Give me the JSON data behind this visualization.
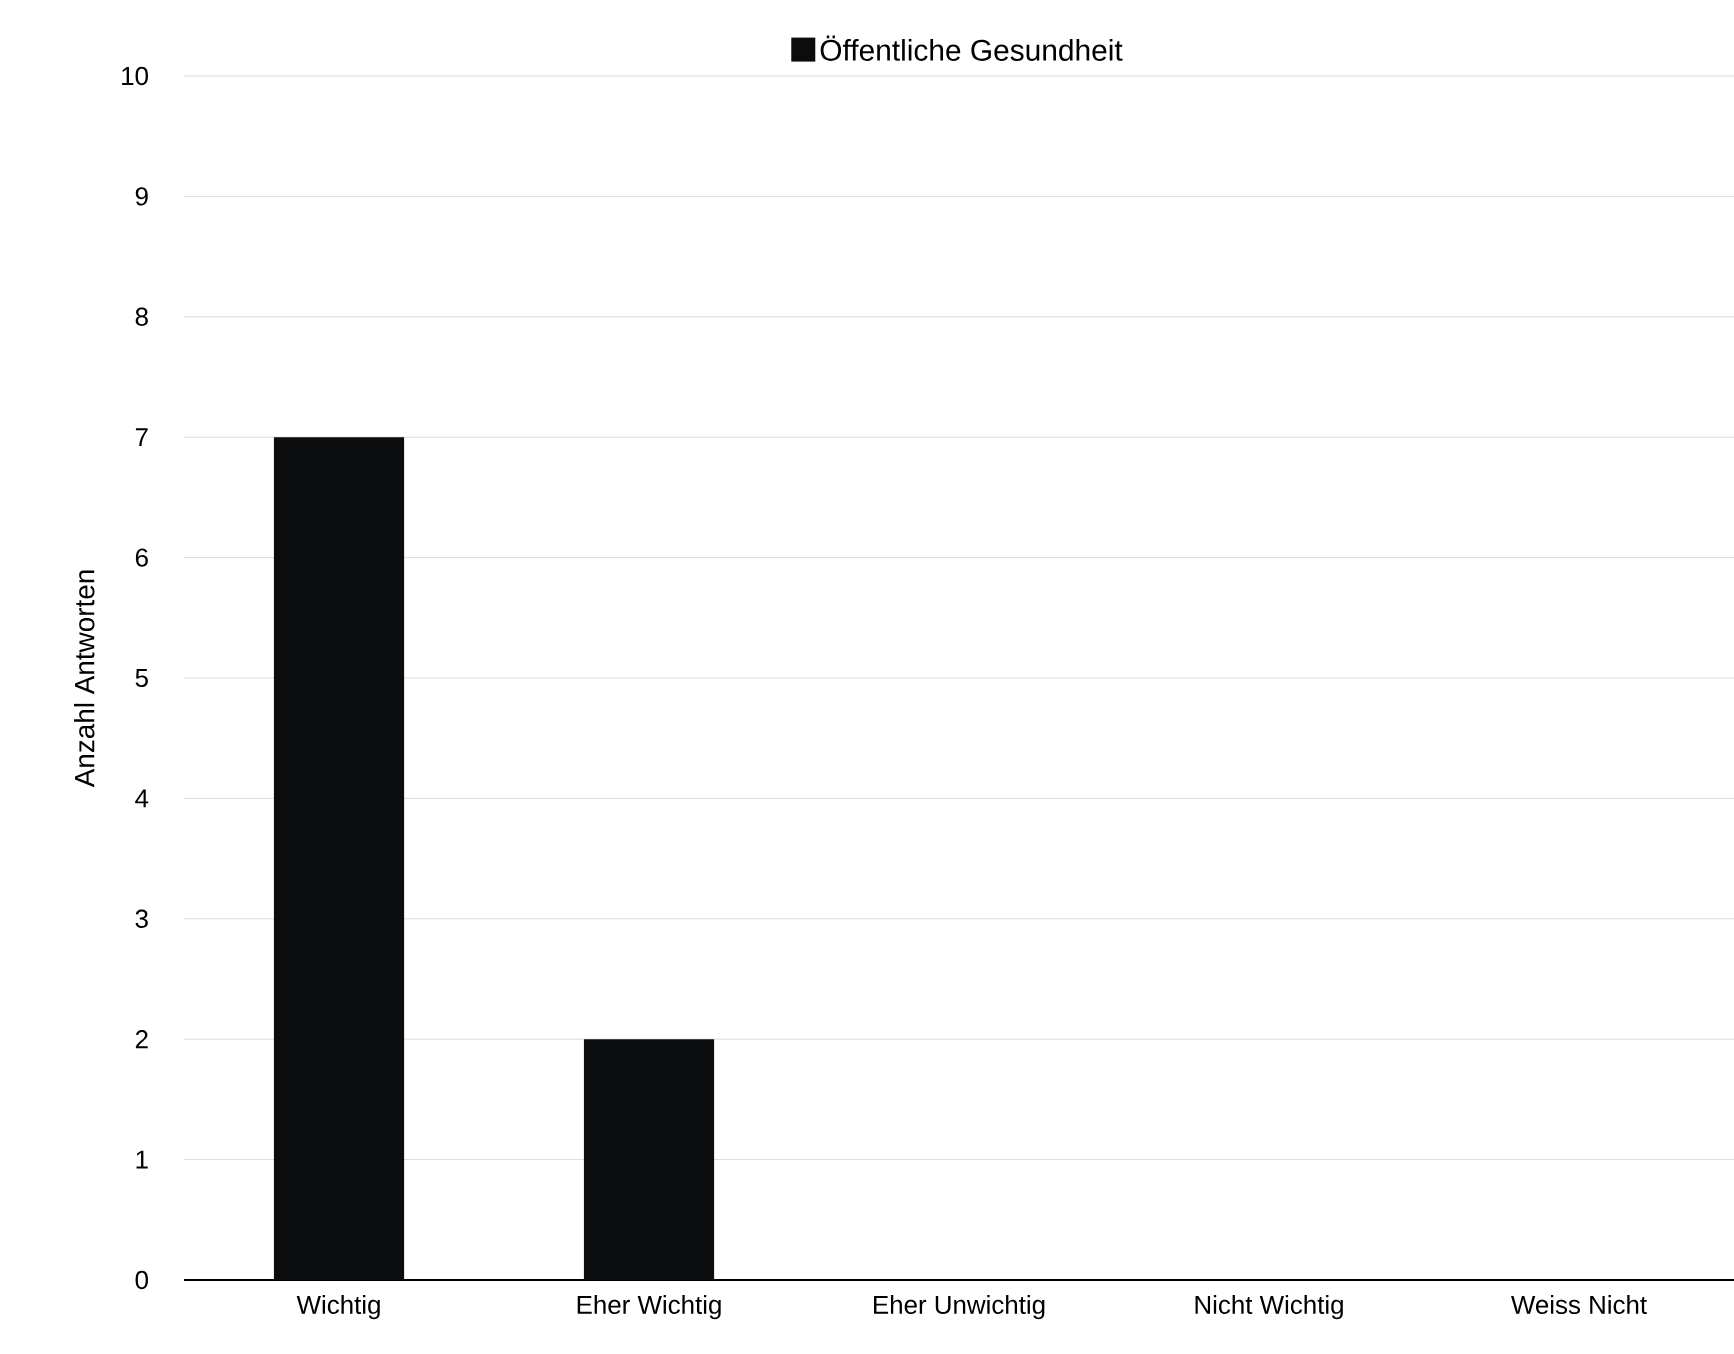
{
  "chart_data": {
    "type": "bar",
    "ylabel": "Anzahl  Antworten",
    "categories": [
      "Wichtig",
      "Eher Wichtig",
      "Eher Unwichtig",
      "Nicht Wichtig",
      "Weiss Nicht"
    ],
    "series": [
      {
        "name": "Öffentliche Gesundheit",
        "color": "#0a0c0e",
        "values": [
          7,
          2,
          0,
          0,
          0
        ]
      }
    ],
    "ylim": [
      0,
      10
    ],
    "yticks": [
      0,
      1,
      2,
      3,
      4,
      5,
      6,
      7,
      8,
      9,
      10
    ],
    "grid": "y",
    "legend": "top"
  }
}
